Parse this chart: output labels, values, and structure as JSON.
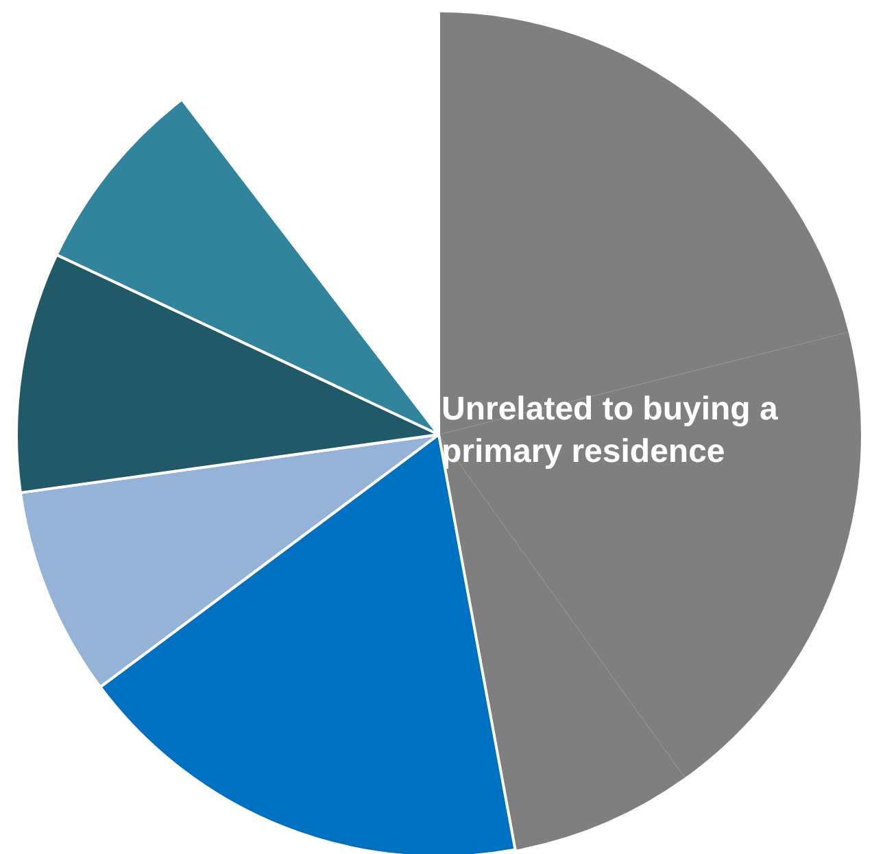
{
  "chart_data": {
    "type": "pie",
    "categories": [
      null,
      null,
      null,
      null,
      null,
      null,
      null,
      null
    ],
    "values": [
      21.1,
      19.0,
      7.0,
      17.7,
      8.0,
      9.2,
      7.6,
      10.4
    ],
    "colors": [
      "#7f7f7f",
      "#7f7f7f",
      "#7f7f7f",
      "#0070c0",
      "#95b3d7",
      "#215968",
      "#31849b",
      "#ffffff"
    ],
    "annotations": [
      "Unrelated to buying a primary residence"
    ]
  }
}
